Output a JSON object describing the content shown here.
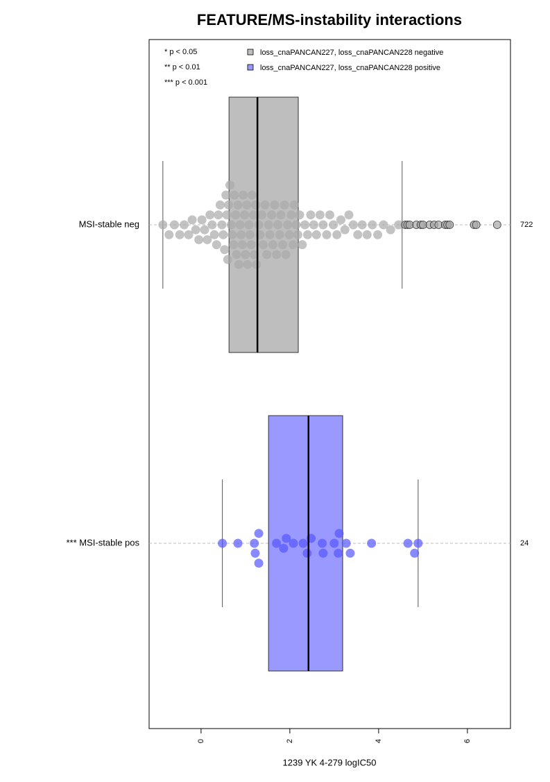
{
  "chart_data": {
    "type": "boxplot",
    "title": "FEATURE/MS-instability interactions",
    "x_label": "1239 YK 4-279 logIC50",
    "xlim": [
      -1.17,
      6.97
    ],
    "xticks": [
      0,
      2,
      4,
      6
    ],
    "notes": [
      "* p < 0.05",
      "** p < 0.01",
      "*** p < 0.001"
    ],
    "series": [
      {
        "name": "loss_cnaPANCAN227, loss_cnaPANCAN228 negative",
        "color": "#bebebe",
        "group": "MSI-stable neg",
        "count": 722,
        "whisker_low": -0.86,
        "q1": 0.63,
        "median": 1.27,
        "q3": 2.19,
        "whisker_high": 4.53,
        "values": [
          -0.86,
          -0.72,
          -0.6,
          -0.48,
          -0.38,
          -0.28,
          -0.2,
          -0.12,
          -0.05,
          0.02,
          0.08,
          0.14,
          0.2,
          0.25,
          0.3,
          0.35,
          0.39,
          0.43,
          0.47,
          0.5,
          0.53,
          0.56,
          0.58,
          0.6,
          0.62,
          0.65,
          0.68,
          0.7,
          0.73,
          0.75,
          0.78,
          0.8,
          0.83,
          0.85,
          0.88,
          0.9,
          0.93,
          0.95,
          0.98,
          1.0,
          1.03,
          1.05,
          1.08,
          1.1,
          1.13,
          1.15,
          1.18,
          1.2,
          1.23,
          1.25,
          1.3,
          1.33,
          1.37,
          1.4,
          1.44,
          1.48,
          1.52,
          1.55,
          1.59,
          1.62,
          1.66,
          1.7,
          1.73,
          1.77,
          1.8,
          1.84,
          1.88,
          1.91,
          1.95,
          1.99,
          2.03,
          2.07,
          2.1,
          2.14,
          2.18,
          2.22,
          2.28,
          2.34,
          2.4,
          2.47,
          2.54,
          2.6,
          2.68,
          2.75,
          2.83,
          2.9,
          2.98,
          3.06,
          3.15,
          3.24,
          3.33,
          3.43,
          3.53,
          3.63,
          3.74,
          3.86,
          3.98,
          4.11,
          4.27,
          4.45
        ],
        "outliers": [
          4.6,
          4.65,
          4.7,
          4.85,
          4.95,
          5.0,
          5.15,
          5.25,
          5.35,
          5.5,
          5.55,
          5.6,
          6.15,
          6.2,
          6.67
        ]
      },
      {
        "name": "loss_cnaPANCAN227, loss_cnaPANCAN228 positive",
        "color": "#9999ff",
        "group": "*** MSI-stable pos",
        "count": 24,
        "whisker_low": 0.48,
        "q1": 1.52,
        "median": 2.42,
        "q3": 3.19,
        "whisker_high": 4.89,
        "values": [
          0.48,
          0.83,
          1.2,
          1.22,
          1.3,
          1.3,
          1.7,
          1.86,
          1.92,
          2.08,
          2.3,
          2.39,
          2.48,
          2.73,
          2.75,
          3.0,
          3.09,
          3.11,
          3.27,
          3.36,
          3.84,
          4.66,
          4.81,
          4.89
        ],
        "outliers": []
      }
    ]
  }
}
